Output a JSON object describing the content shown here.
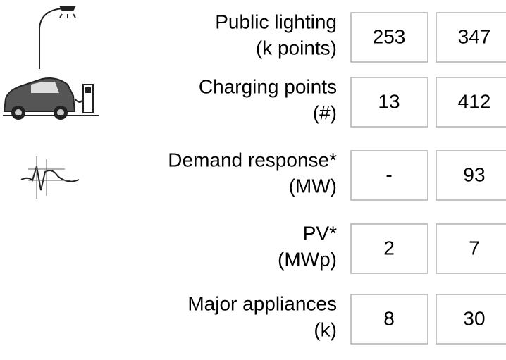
{
  "table": {
    "rows": [
      {
        "label": "Public lighting",
        "unit": "(k points)",
        "values": [
          253,
          347
        ]
      },
      {
        "label": "Charging points",
        "unit": "(#)",
        "values": [
          13,
          412
        ]
      },
      {
        "label": "Demand response*",
        "unit": "(MW)",
        "values": [
          "-",
          93
        ]
      },
      {
        "label": "PV*",
        "unit": "(MWp)",
        "values": [
          2,
          7
        ]
      },
      {
        "label": "Major appliances",
        "unit": "(k)",
        "values": [
          8,
          30
        ]
      }
    ]
  }
}
